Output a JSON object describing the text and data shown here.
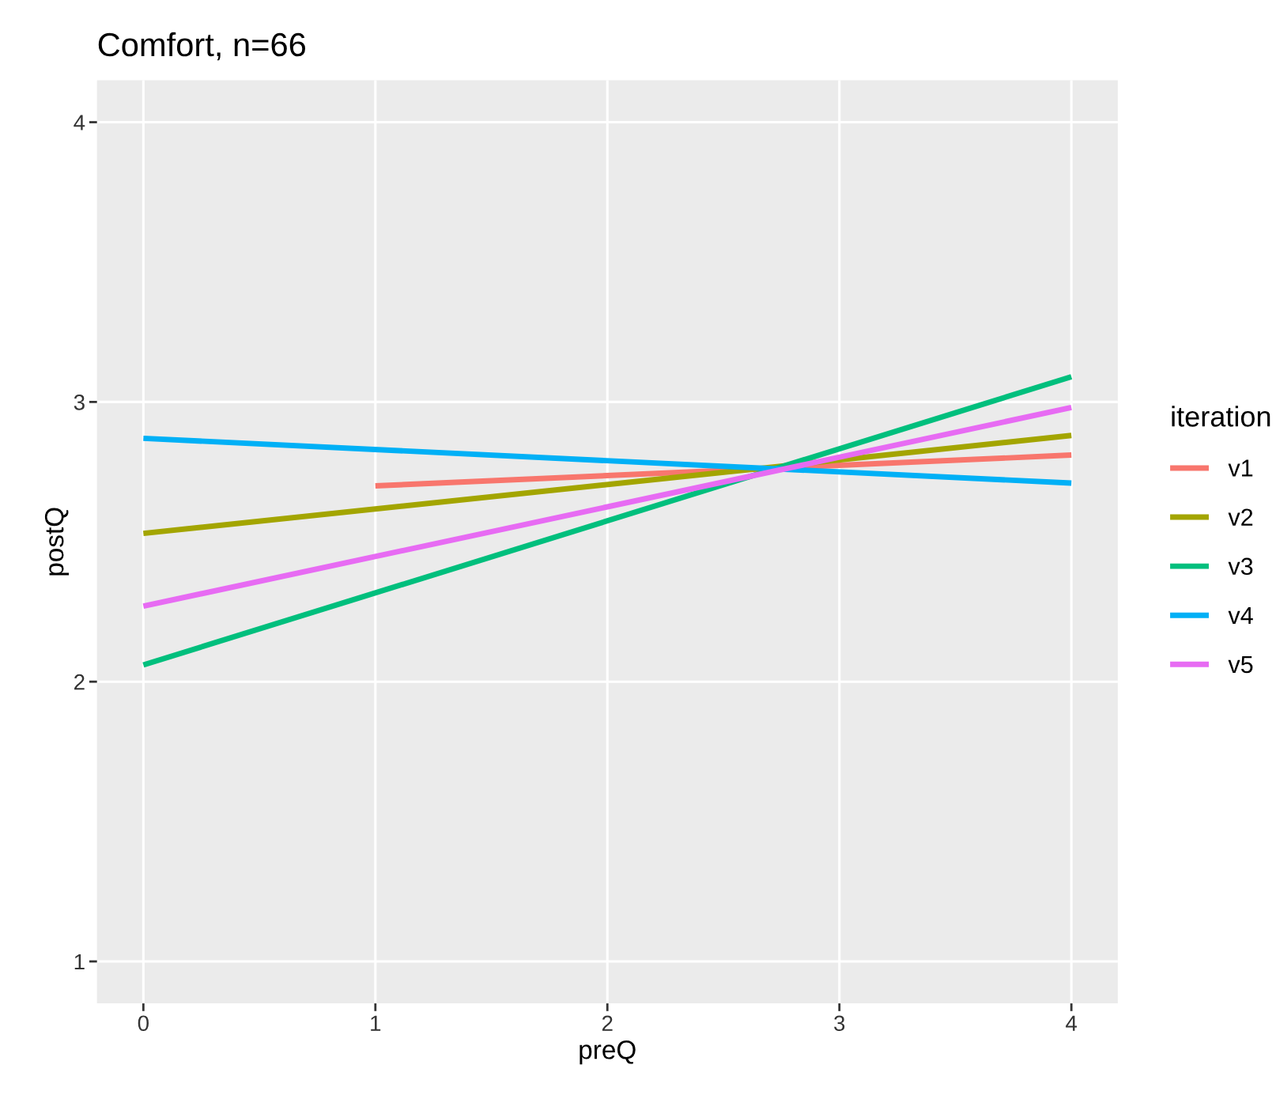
{
  "chart_data": {
    "type": "line",
    "title": "Comfort, n=66",
    "xlabel": "preQ",
    "ylabel": "postQ",
    "legend_title": "iteration",
    "xlim": [
      -0.2,
      4.2
    ],
    "xticks": [
      0,
      1,
      2,
      3,
      4
    ],
    "ylim": [
      0.85,
      4.15
    ],
    "yticks": [
      1,
      2,
      3,
      4
    ],
    "grid": true,
    "legend": "right",
    "marker": "none",
    "line_style": "solid",
    "series": [
      {
        "name": "v1",
        "color": "#f8766d",
        "x": [
          1,
          4
        ],
        "values": [
          2.7,
          2.81
        ]
      },
      {
        "name": "v2",
        "color": "#a3a500",
        "x": [
          0,
          4
        ],
        "values": [
          2.53,
          2.88
        ]
      },
      {
        "name": "v3",
        "color": "#00bf7d",
        "x": [
          0,
          4
        ],
        "values": [
          2.06,
          3.09
        ]
      },
      {
        "name": "v4",
        "color": "#00b0f6",
        "x": [
          0,
          4
        ],
        "values": [
          2.87,
          2.71
        ]
      },
      {
        "name": "v5",
        "color": "#e76bf3",
        "x": [
          0,
          4
        ],
        "values": [
          2.27,
          2.98
        ]
      }
    ]
  }
}
